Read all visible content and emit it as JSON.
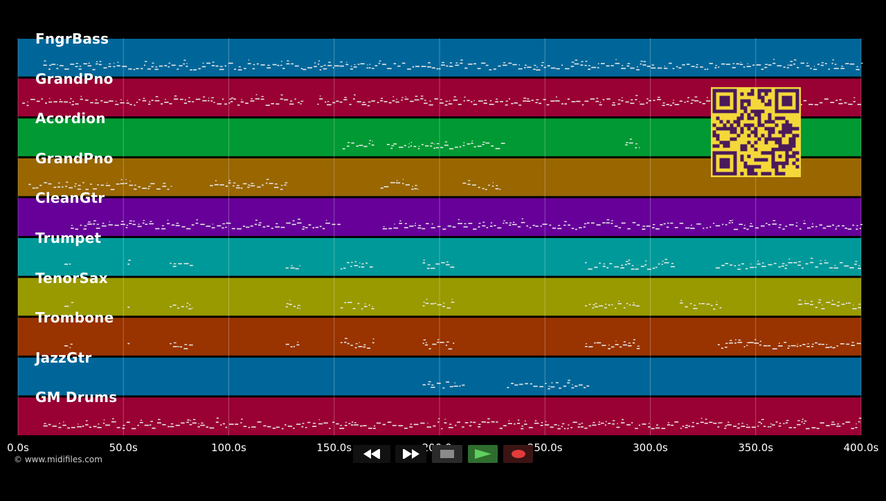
{
  "tracks": [
    {
      "name": "FngrBass",
      "color": "#006699",
      "segments": [
        [
          12,
          135
        ],
        [
          135,
          150
        ],
        [
          150,
          400
        ]
      ]
    },
    {
      "name": "GrandPno",
      "color": "#990033",
      "segments": [
        [
          2,
          135
        ],
        [
          142,
          295
        ],
        [
          295,
          400
        ]
      ]
    },
    {
      "name": "Acordion",
      "color": "#009933",
      "segments": [
        [
          154,
          169
        ],
        [
          175,
          212
        ],
        [
          213,
          232
        ],
        [
          288,
          295
        ]
      ]
    },
    {
      "name": "GrandPno",
      "color": "#996600",
      "segments": [
        [
          5,
          73
        ],
        [
          91,
          128
        ],
        [
          172,
          190
        ],
        [
          211,
          229
        ]
      ]
    },
    {
      "name": "CleanGtr",
      "color": "#660099",
      "segments": [
        [
          25,
          153
        ],
        [
          173,
          295
        ],
        [
          296,
          400
        ]
      ]
    },
    {
      "name": "Trumpet",
      "color": "#009999",
      "segments": [
        [
          22,
          25
        ],
        [
          52,
          53
        ],
        [
          72,
          83
        ],
        [
          127,
          134
        ],
        [
          153,
          169
        ],
        [
          192,
          207
        ],
        [
          269,
          312
        ],
        [
          331,
          400
        ]
      ]
    },
    {
      "name": "TenorSax",
      "color": "#999900",
      "segments": [
        [
          22,
          25
        ],
        [
          52,
          53
        ],
        [
          72,
          83
        ],
        [
          127,
          134
        ],
        [
          153,
          169
        ],
        [
          192,
          207
        ],
        [
          269,
          295
        ],
        [
          314,
          334
        ],
        [
          370,
          400
        ]
      ]
    },
    {
      "name": "Trombone",
      "color": "#993300",
      "segments": [
        [
          22,
          25
        ],
        [
          52,
          53
        ],
        [
          72,
          83
        ],
        [
          127,
          134
        ],
        [
          153,
          169
        ],
        [
          192,
          207
        ],
        [
          269,
          295
        ],
        [
          332,
          400
        ]
      ]
    },
    {
      "name": "JazzGtr",
      "color": "#006699",
      "segments": [
        [
          192,
          212
        ],
        [
          232,
          271
        ]
      ]
    },
    {
      "name": "GM Drums",
      "color": "#990033",
      "segments": [
        [
          12,
          400
        ]
      ]
    }
  ],
  "timeline": {
    "max_seconds": 400
  },
  "ticks": [
    {
      "label": "0.0s",
      "value": 0
    },
    {
      "label": "50.0s",
      "value": 50
    },
    {
      "label": "100.0s",
      "value": 100
    },
    {
      "label": "150.0s",
      "value": 150
    },
    {
      "label": "200.0s",
      "value": 200
    },
    {
      "label": "250.0s",
      "value": 250
    },
    {
      "label": "300.0s",
      "value": 300
    },
    {
      "label": "350.0s",
      "value": 350
    },
    {
      "label": "400.0s",
      "value": 400
    }
  ],
  "copyright": "© www.midifiles.com",
  "transport": {
    "rewind": "rewind-icon",
    "fast_forward": "fast-forward-icon",
    "stop": "stop-icon",
    "play": "play-icon",
    "record": "record-icon"
  },
  "qr_code": {
    "fg": "#4a1a5a",
    "bg": "#f4d83a"
  }
}
